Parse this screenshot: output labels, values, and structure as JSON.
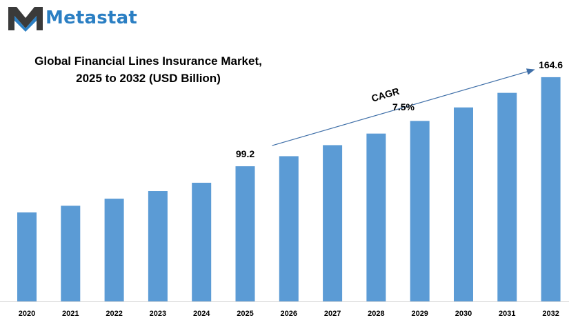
{
  "brand": {
    "name": "Metastat",
    "color": "#2b7fc3",
    "icon": "metastat-logo-icon"
  },
  "chart_data": {
    "type": "bar",
    "title_line1": "Global Financial Lines Insurance Market,",
    "title_line2": "2025 to 2032 (USD Billion)",
    "categories": [
      "2020",
      "2021",
      "2022",
      "2023",
      "2024",
      "2025",
      "2026",
      "2027",
      "2028",
      "2029",
      "2030",
      "2031",
      "2032"
    ],
    "values": [
      65.3,
      70.2,
      75.4,
      81.0,
      87.1,
      99.2,
      106.6,
      114.7,
      123.2,
      132.5,
      142.4,
      153.1,
      164.6
    ],
    "bar_color": "#5b9bd5",
    "data_labels": [
      {
        "category": "2025",
        "text": "99.2"
      },
      {
        "category": "2032",
        "text": "164.6"
      }
    ],
    "annotation": {
      "label": "CAGR",
      "value": "7.5%"
    },
    "ylim": [
      0,
      175
    ],
    "grid": false,
    "legend": "none"
  }
}
